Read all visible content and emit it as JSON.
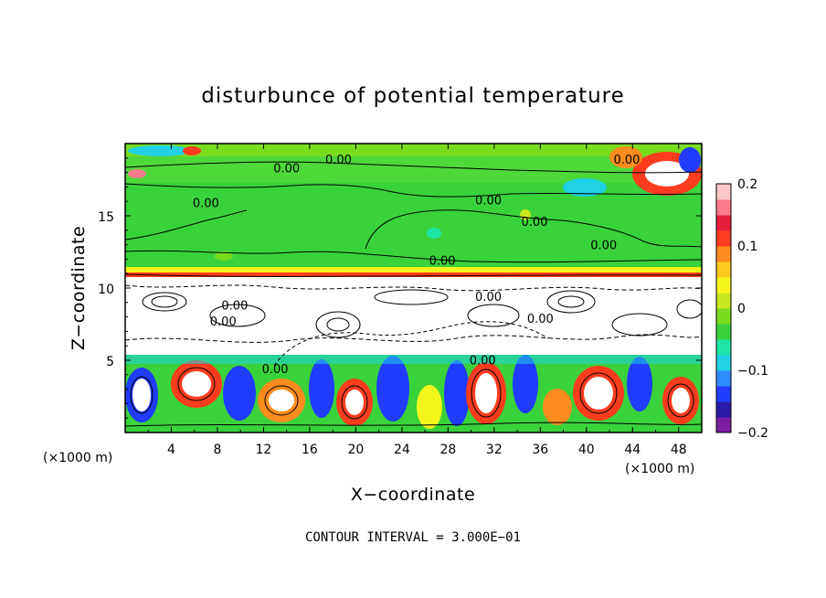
{
  "chart_data": {
    "type": "heatmap",
    "title": "disturbunce of potential temperature",
    "xlabel": "X−coordinate",
    "ylabel": "Z−coordinate",
    "x_unit": "(×1000 m)",
    "y_unit": "(×1000 m)",
    "xlim": [
      0,
      50
    ],
    "ylim": [
      0,
      20
    ],
    "x_ticks": [
      4,
      8,
      12,
      16,
      20,
      24,
      28,
      32,
      36,
      40,
      44,
      48
    ],
    "x_tick_labels": [
      "4",
      "8",
      "12",
      "16",
      "20",
      "24",
      "28",
      "32",
      "36",
      "40",
      "44",
      "48"
    ],
    "y_ticks": [
      5,
      10,
      15
    ],
    "y_tick_labels": [
      "5",
      "10",
      "15"
    ],
    "colorbar": {
      "min": -0.2,
      "max": 0.2,
      "ticks": [
        0.2,
        0.1,
        0,
        -0.1,
        -0.2
      ],
      "tick_labels": [
        "0.2",
        "0.1",
        "0",
        "−0.1",
        "−0.2"
      ],
      "colors": [
        "#7a1fa2",
        "#2b1aa8",
        "#1f3cff",
        "#2f8cff",
        "#1fd2e6",
        "#1fe6a8",
        "#3ad23a",
        "#7adc1e",
        "#c8e61e",
        "#f5f51e",
        "#ffc81e",
        "#ff8c1e",
        "#ff3c1e",
        "#e61e3c",
        "#ff7a8c",
        "#ffc8c8"
      ]
    },
    "contour_labels": [
      {
        "x": 18.5,
        "z": 18.6,
        "text": "0.00"
      },
      {
        "x": 14.0,
        "z": 18.0,
        "text": "0.00"
      },
      {
        "x": 7.0,
        "z": 15.6,
        "text": "0.00"
      },
      {
        "x": 31.5,
        "z": 15.8,
        "text": "0.00"
      },
      {
        "x": 35.5,
        "z": 14.3,
        "text": "0.00"
      },
      {
        "x": 41.5,
        "z": 12.7,
        "text": "0.00"
      },
      {
        "x": 27.5,
        "z": 11.6,
        "text": "0.00"
      },
      {
        "x": 31.5,
        "z": 9.1,
        "text": "0.00"
      },
      {
        "x": 9.5,
        "z": 8.5,
        "text": "0.00"
      },
      {
        "x": 8.5,
        "z": 7.4,
        "text": "0.00"
      },
      {
        "x": 13.0,
        "z": 4.1,
        "text": "0.00"
      },
      {
        "x": 31.0,
        "z": 4.7,
        "text": "0.00"
      },
      {
        "x": 36.0,
        "z": 7.6,
        "text": "0.00"
      },
      {
        "x": 43.5,
        "z": 18.6,
        "text": "0.00"
      }
    ],
    "contour_interval": "CONTOUR INTERVAL = 3.000E−01"
  }
}
